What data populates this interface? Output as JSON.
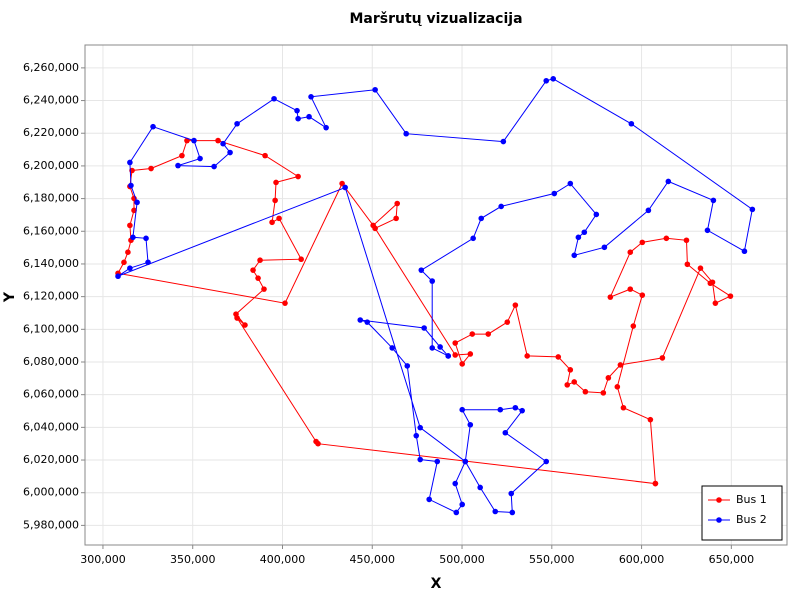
{
  "chart_data": {
    "type": "line",
    "title": "Maršrutų vizualizacija",
    "x_label": "X",
    "y_label": "Y",
    "xlim": [
      290000,
      681000
    ],
    "ylim": [
      5968000,
      6274000
    ],
    "grid": true,
    "legend": "bottom-right",
    "xticks": [
      {
        "value": 300000,
        "label": "300,000"
      },
      {
        "value": 350000,
        "label": "350,000"
      },
      {
        "value": 400000,
        "label": "400,000"
      },
      {
        "value": 450000,
        "label": "450,000"
      },
      {
        "value": 500000,
        "label": "500,000"
      },
      {
        "value": 550000,
        "label": "550,000"
      },
      {
        "value": 600000,
        "label": "600,000"
      },
      {
        "value": 650000,
        "label": "650,000"
      }
    ],
    "yticks": [
      {
        "value": 5980000,
        "label": "5,980,000"
      },
      {
        "value": 6000000,
        "label": "6,000,000"
      },
      {
        "value": 6020000,
        "label": "6,020,000"
      },
      {
        "value": 6040000,
        "label": "6,040,000"
      },
      {
        "value": 6060000,
        "label": "6,060,000"
      },
      {
        "value": 6080000,
        "label": "6,080,000"
      },
      {
        "value": 6100000,
        "label": "6,100,000"
      },
      {
        "value": 6120000,
        "label": "6,120,000"
      },
      {
        "value": 6140000,
        "label": "6,140,000"
      },
      {
        "value": 6160000,
        "label": "6,160,000"
      },
      {
        "value": 6180000,
        "label": "6,180,000"
      },
      {
        "value": 6200000,
        "label": "6,200,000"
      },
      {
        "value": 6220000,
        "label": "6,220,000"
      },
      {
        "value": 6240000,
        "label": "6,240,000"
      },
      {
        "value": 6260000,
        "label": "6,260,000"
      }
    ],
    "series": [
      {
        "name": "Bus 1",
        "color": "#ff0000",
        "x": [
          607700,
          419800,
          418700,
          374700,
          379100,
          374100,
          389700,
          386400,
          383600,
          387500,
          410400,
          398100,
          394200,
          395900,
          396400,
          408700,
          390300,
          364100,
          346800,
          344000,
          326800,
          316200,
          315000,
          317300,
          317300,
          315000,
          315600,
          313900,
          311700,
          308400,
          401400,
          433200,
          450500,
          463900,
          463300,
          451600,
          496200,
          504600,
          500100,
          496200,
          505700,
          514600,
          525200,
          529700,
          536300,
          553600,
          560300,
          558600,
          562500,
          568700,
          578700,
          581500,
          588200,
          611600,
          632800,
          639500,
          641100,
          649500,
          638300,
          625500,
          625000,
          613800,
          600400,
          593700,
          582600,
          593700,
          600400,
          595400,
          586500,
          589900,
          604900,
          607700
        ],
        "values": [
          6005600,
          6030000,
          6031300,
          6106900,
          6102600,
          6109300,
          6124600,
          6131300,
          6136200,
          6142300,
          6142900,
          6167900,
          6165500,
          6178900,
          6189900,
          6193500,
          6206300,
          6215500,
          6215500,
          6206300,
          6198400,
          6197200,
          6187400,
          6180100,
          6172800,
          6163600,
          6154500,
          6147200,
          6141000,
          6134300,
          6116000,
          6189200,
          6163600,
          6177000,
          6167900,
          6161800,
          6084300,
          6084900,
          6078800,
          6091600,
          6097100,
          6097100,
          6104400,
          6114800,
          6083700,
          6083100,
          6075200,
          6066000,
          6067800,
          6061800,
          6061100,
          6070300,
          6078200,
          6082500,
          6137400,
          6128800,
          6116000,
          6120300,
          6128200,
          6139800,
          6154500,
          6155700,
          6153200,
          6147200,
          6119700,
          6124600,
          6120900,
          6102000,
          6064800,
          6052000,
          6044700,
          6005600
        ]
      },
      {
        "name": "Bus 2",
        "color": "#0000ff",
        "x": [
          492300,
          487800,
          478900,
          443300,
          447200,
          461100,
          469500,
          474500,
          476700,
          486200,
          481700,
          496800,
          500100,
          496200,
          501800,
          504600,
          500100,
          521300,
          529700,
          533500,
          524100,
          546900,
          527400,
          528000,
          518500,
          510100,
          501800,
          476700,
          434900,
          308400,
          315000,
          325100,
          324000,
          316700,
          319000,
          315600,
          315000,
          327900,
          350700,
          354100,
          341800,
          361900,
          370800,
          366900,
          374700,
          395300,
          408100,
          408700,
          414800,
          424300,
          415900,
          451600,
          468900,
          523000,
          546900,
          550800,
          594300,
          661700,
          657300,
          636700,
          640000,
          614900,
          603800,
          579300,
          562500,
          564800,
          568100,
          574800,
          560300,
          551400,
          521800,
          510700,
          506200,
          477300,
          483400,
          483400,
          492300
        ],
        "values": [
          6083700,
          6089200,
          6100800,
          6105700,
          6104400,
          6088600,
          6077600,
          6034900,
          6020300,
          6019100,
          5995900,
          5987900,
          5992800,
          6005600,
          6019100,
          6041600,
          6050800,
          6050800,
          6052000,
          6050200,
          6036700,
          6019100,
          5999500,
          5987900,
          5988500,
          6003200,
          6019100,
          6039800,
          6186800,
          6132500,
          6137400,
          6141000,
          6155700,
          6156300,
          6177700,
          6188000,
          6202100,
          6224000,
          6215500,
          6204500,
          6200200,
          6199600,
          6208200,
          6213600,
          6225800,
          6241100,
          6233800,
          6228900,
          6230100,
          6223400,
          6242300,
          6246600,
          6219700,
          6214900,
          6252100,
          6253300,
          6225800,
          6173400,
          6147800,
          6160600,
          6178900,
          6190500,
          6172800,
          6150200,
          6145300,
          6156300,
          6159400,
          6170300,
          6189200,
          6183100,
          6175200,
          6167900,
          6155700,
          6136200,
          6129500,
          6088600,
          6083700
        ]
      }
    ]
  }
}
